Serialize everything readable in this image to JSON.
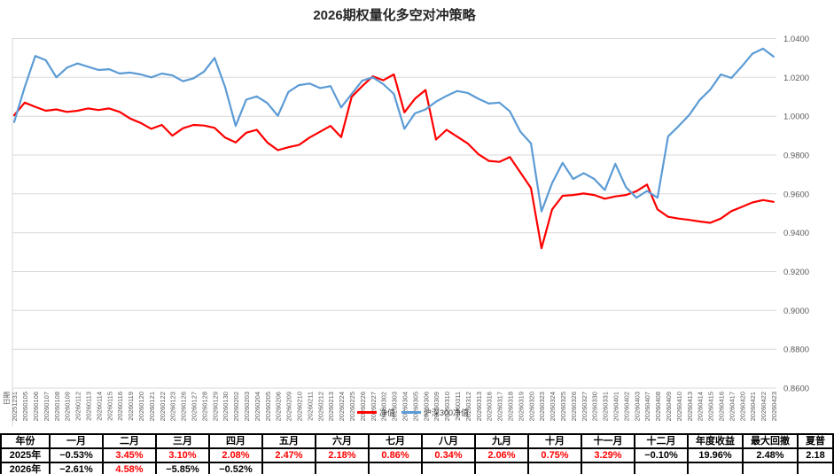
{
  "title": "2026期权量化多空对冲策略",
  "axis": {
    "date_header": "日期",
    "y_ticks": [
      "1.0400",
      "1.0200",
      "1.0000",
      "0.9800",
      "0.9600",
      "0.9400",
      "0.9200",
      "0.9000",
      "0.8800",
      "0.8600"
    ],
    "grid_color": "#d9d9d9",
    "tick_label_color": "#595959"
  },
  "chart_data": {
    "type": "line",
    "title": "2026期权量化多空对冲策略",
    "xlabel": "日期",
    "ylabel": "",
    "ylim": [
      0.86,
      1.04
    ],
    "grid": true,
    "legend_position": "bottom-center",
    "x": [
      "20251231",
      "20260105",
      "20260106",
      "20260107",
      "20260108",
      "20260109",
      "20260112",
      "20260113",
      "20260114",
      "20260115",
      "20260116",
      "20260119",
      "20260120",
      "20260121",
      "20260122",
      "20260123",
      "20260126",
      "20260127",
      "20260128",
      "20260129",
      "20260130",
      "20260202",
      "20260203",
      "20260204",
      "20260205",
      "20260206",
      "20260209",
      "20260210",
      "20260211",
      "20260212",
      "20260213",
      "20260224",
      "20260225",
      "20260226",
      "20260227",
      "20260302",
      "20260303",
      "20260304",
      "20260305",
      "20260306",
      "20260309",
      "20260310",
      "20260311",
      "20260312",
      "20260313",
      "20260316",
      "20260317",
      "20260318",
      "20260319",
      "20260320",
      "20260323",
      "20260324",
      "20260325",
      "20260326",
      "20260327",
      "20260330",
      "20260331",
      "20260401",
      "20260402",
      "20260403",
      "20260407",
      "20260408",
      "20260409",
      "20260410",
      "20260413",
      "20260414",
      "20260415",
      "20260416",
      "20260417",
      "20260420",
      "20260421",
      "20260422",
      "20260423"
    ],
    "series": [
      {
        "name": "净值",
        "color": "#ff0000",
        "values": [
          1.0005,
          1.007,
          1.0048,
          1.0028,
          1.0035,
          1.0022,
          1.0028,
          1.004,
          1.0032,
          1.004,
          1.0022,
          0.9988,
          0.9965,
          0.9935,
          0.9955,
          0.99,
          0.9938,
          0.9955,
          0.9952,
          0.994,
          0.989,
          0.9865,
          0.9915,
          0.993,
          0.9865,
          0.9825,
          0.984,
          0.9852,
          0.989,
          0.992,
          0.995,
          0.9892,
          1.01,
          1.0155,
          1.0205,
          1.0185,
          1.0215,
          1.002,
          1.009,
          1.0135,
          0.988,
          0.993,
          0.9895,
          0.986,
          0.9805,
          0.977,
          0.9765,
          0.979,
          0.971,
          0.963,
          0.932,
          0.952,
          0.959,
          0.9594,
          0.9602,
          0.9594,
          0.9575,
          0.9587,
          0.9594,
          0.9614,
          0.9648,
          0.952,
          0.9482,
          0.9473,
          0.9466,
          0.9458,
          0.9451,
          0.9473,
          0.9511,
          0.9533,
          0.9556,
          0.9568,
          0.9559
        ]
      },
      {
        "name": "沪深300净值",
        "color": "#5b9bd5",
        "values": [
          0.997,
          1.015,
          1.031,
          1.0288,
          1.02,
          1.025,
          1.0272,
          1.0255,
          1.0238,
          1.0242,
          1.022,
          1.0225,
          1.0215,
          1.02,
          1.022,
          1.021,
          1.018,
          1.0195,
          1.023,
          1.03,
          1.015,
          0.995,
          1.0085,
          1.0102,
          1.0068,
          1.0002,
          1.0125,
          1.016,
          1.0168,
          1.0145,
          1.0155,
          1.0045,
          1.0115,
          1.0183,
          1.02,
          1.0165,
          1.0115,
          0.9935,
          1.0015,
          1.0035,
          1.0075,
          1.0105,
          1.013,
          1.012,
          1.009,
          1.0065,
          1.007,
          1.0025,
          0.992,
          0.986,
          0.951,
          0.9655,
          0.976,
          0.9677,
          0.9707,
          0.9677,
          0.962,
          0.9755,
          0.9635,
          0.958,
          0.9615,
          0.958,
          0.9896,
          0.9949,
          1.0006,
          1.0084,
          1.0137,
          1.0215,
          1.0197,
          1.0257,
          1.0322,
          1.0348,
          1.0307
        ]
      }
    ]
  },
  "table": {
    "headers": [
      "年份",
      "一月",
      "二月",
      "三月",
      "四月",
      "五月",
      "六月",
      "七月",
      "八月",
      "九月",
      "十月",
      "十一月",
      "十二月",
      "年度收益",
      "最大回撤",
      "夏普"
    ],
    "rows": [
      [
        {
          "t": "2025年"
        },
        {
          "t": "−0.53%"
        },
        {
          "t": "3.45%",
          "r": 1
        },
        {
          "t": "3.10%",
          "r": 1
        },
        {
          "t": "2.08%",
          "r": 1
        },
        {
          "t": "2.47%",
          "r": 1
        },
        {
          "t": "2.18%",
          "r": 1
        },
        {
          "t": "0.86%",
          "r": 1
        },
        {
          "t": "0.34%",
          "r": 1
        },
        {
          "t": "2.06%",
          "r": 1
        },
        {
          "t": "0.75%",
          "r": 1
        },
        {
          "t": "3.29%",
          "r": 1
        },
        {
          "t": "−0.10%"
        },
        {
          "t": "19.96%"
        },
        {
          "t": "2.48%"
        },
        {
          "t": "2.18"
        }
      ],
      [
        {
          "t": "2026年"
        },
        {
          "t": "−2.61%"
        },
        {
          "t": "4.58%",
          "r": 1
        },
        {
          "t": "−5.85%"
        },
        {
          "t": "−0.52%"
        },
        {
          "t": ""
        },
        {
          "t": ""
        },
        {
          "t": ""
        },
        {
          "t": ""
        },
        {
          "t": ""
        },
        {
          "t": ""
        },
        {
          "t": ""
        },
        {
          "t": ""
        },
        {
          "t": ""
        },
        {
          "t": ""
        },
        {
          "t": ""
        }
      ]
    ]
  }
}
